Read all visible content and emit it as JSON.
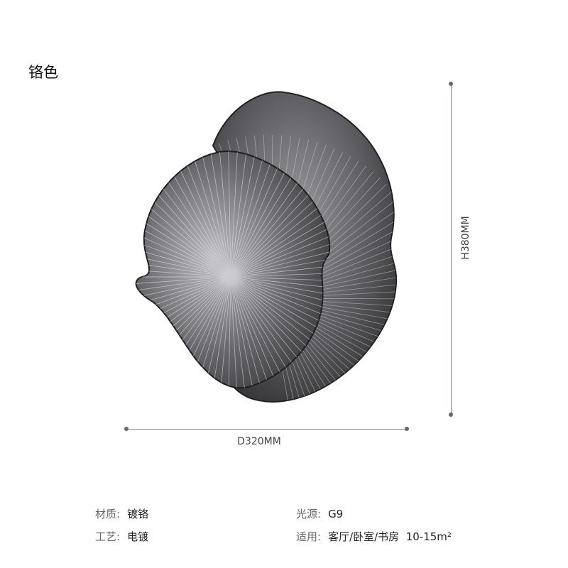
{
  "title": "铬色",
  "dimensions": {
    "height": "H380MM",
    "diameter": "D320MM"
  },
  "specs": [
    {
      "label": "材质:",
      "value": "镀铬"
    },
    {
      "label": "工艺:",
      "value": "电镀"
    },
    {
      "label": "光源:",
      "value": "G9"
    },
    {
      "label": "适用:",
      "value": "客厅/卧室/书房  10-15m²"
    }
  ],
  "colors": {
    "leaf_dark": "#2e2e30",
    "leaf_light": "#b8b8bc",
    "dimension_line": "#8a817c"
  }
}
